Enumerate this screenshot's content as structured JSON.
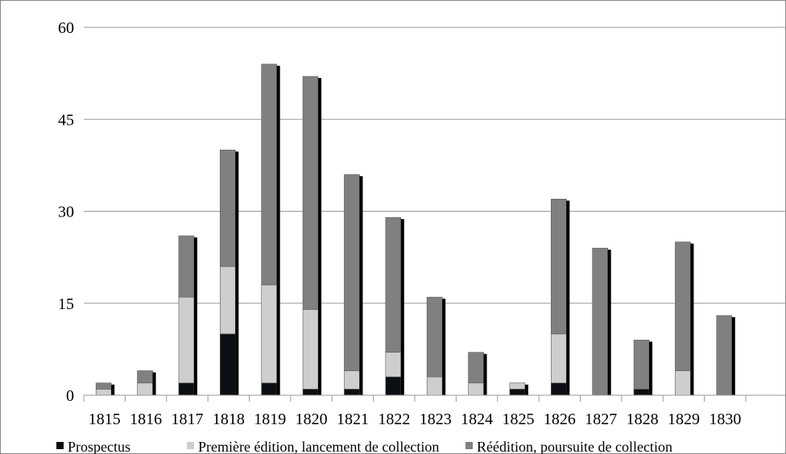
{
  "chart_data": {
    "type": "bar",
    "stacked": true,
    "categories": [
      "1815",
      "1816",
      "1817",
      "1818",
      "1819",
      "1820",
      "1821",
      "1822",
      "1823",
      "1824",
      "1825",
      "1826",
      "1827",
      "1828",
      "1829",
      "1830"
    ],
    "series": [
      {
        "name": "Prospectus",
        "color": "#0b0f14",
        "values": [
          0,
          0,
          2,
          10,
          2,
          1,
          1,
          3,
          0,
          0,
          1,
          2,
          0,
          1,
          0,
          0
        ]
      },
      {
        "name": "Première édition, lancement de collection",
        "color": "#cecece",
        "values": [
          1,
          2,
          14,
          11,
          16,
          13,
          3,
          4,
          3,
          2,
          1,
          8,
          0,
          0,
          4,
          0
        ]
      },
      {
        "name": "Réédition, poursuite de collection",
        "color": "#808080",
        "values": [
          1,
          2,
          10,
          19,
          36,
          38,
          32,
          22,
          13,
          5,
          0,
          22,
          24,
          8,
          21,
          13
        ]
      }
    ],
    "ylim": [
      0,
      60
    ],
    "yticks": [
      "0",
      "15",
      "30",
      "45",
      "60"
    ],
    "grid": true,
    "legend_position": "bottom"
  }
}
